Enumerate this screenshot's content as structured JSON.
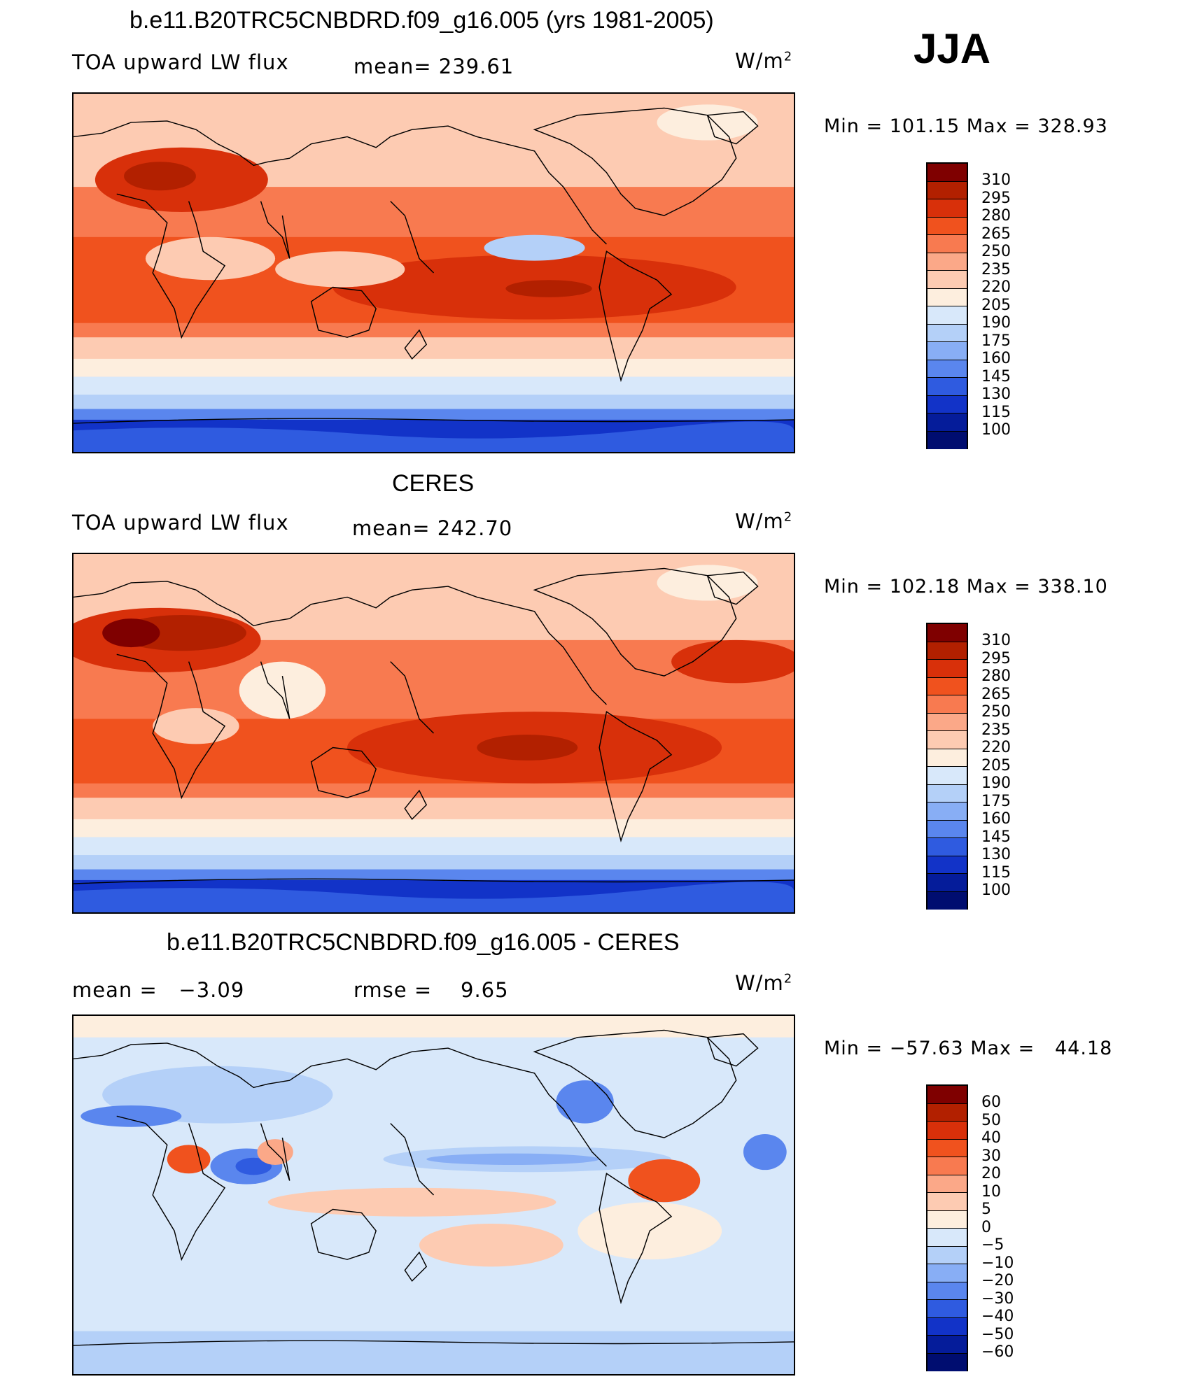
{
  "season": "JJA",
  "panels": [
    {
      "title": "b.e11.B20TRC5CNBDRD.f09_g16.005 (yrs 1981-2005)",
      "left_label": "TOA upward LW flux",
      "center_label": "mean= 239.61",
      "units": "W/m²",
      "minmax": "Min = 101.15 Max = 328.93",
      "levels": [
        "310",
        "295",
        "280",
        "265",
        "250",
        "235",
        "220",
        "205",
        "190",
        "175",
        "160",
        "145",
        "130",
        "115",
        "100"
      ]
    },
    {
      "title": "CERES",
      "left_label": "TOA upward LW flux",
      "center_label": "mean= 242.70",
      "units": "W/m²",
      "minmax": "Min = 102.18 Max = 338.10",
      "levels": [
        "310",
        "295",
        "280",
        "265",
        "250",
        "235",
        "220",
        "205",
        "190",
        "175",
        "160",
        "145",
        "130",
        "115",
        "100"
      ]
    },
    {
      "title": "b.e11.B20TRC5CNBDRD.f09_g16.005 - CERES",
      "left_label": "mean =   −3.09",
      "center_label": "rmse =    9.65",
      "units": "W/m²",
      "minmax": "Min = −57.63 Max =   44.18",
      "levels": [
        "60",
        "50",
        "40",
        "30",
        "20",
        "10",
        "5",
        "0",
        "−5",
        "−10",
        "−20",
        "−30",
        "−40",
        "−50",
        "−60"
      ]
    }
  ],
  "colorbar": {
    "abs_colors": [
      "#7f0000",
      "#b22000",
      "#d8300a",
      "#f0521e",
      "#f87a50",
      "#fba888",
      "#fdcbb2",
      "#fdeede",
      "#d8e8fa",
      "#b4d0f8",
      "#88aef5",
      "#5a86ee",
      "#2f5be0",
      "#1233c8",
      "#051c9a",
      "#000d70"
    ],
    "diff_colors": [
      "#7f0000",
      "#b22000",
      "#d8300a",
      "#f0521e",
      "#f87a50",
      "#fba888",
      "#fdcbb2",
      "#fdeede",
      "#d8e8fa",
      "#b4d0f8",
      "#88aef5",
      "#5a86ee",
      "#2f5be0",
      "#1233c8",
      "#051c9a",
      "#000d70"
    ]
  }
}
